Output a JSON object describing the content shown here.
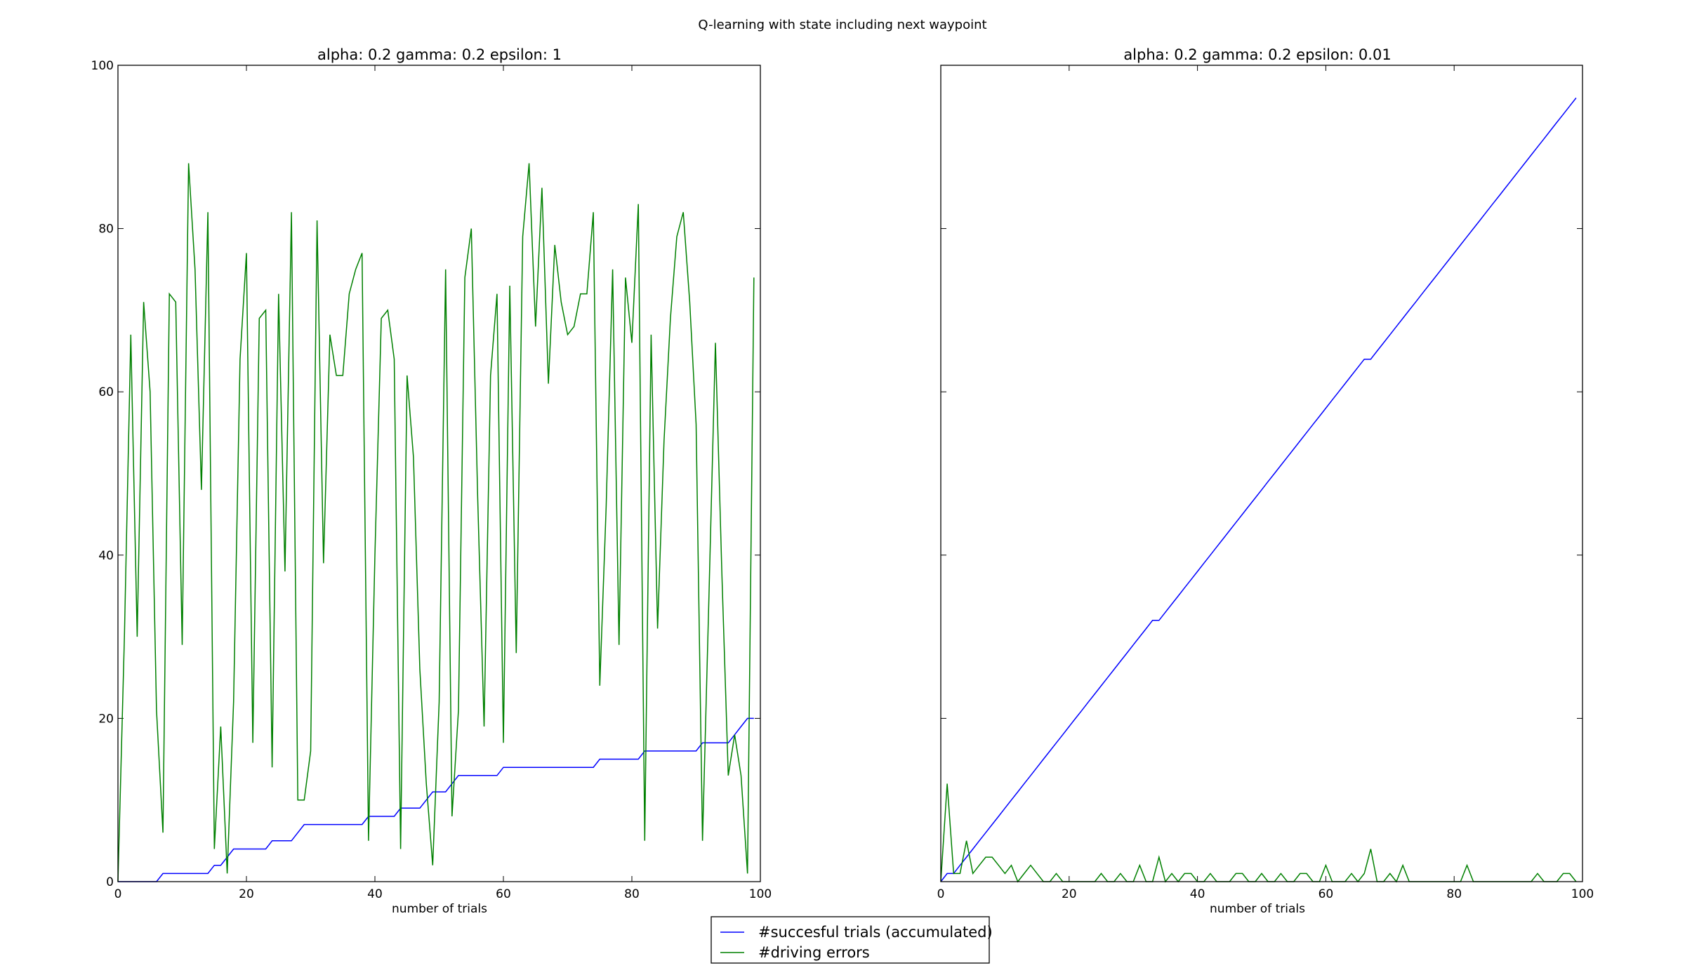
{
  "chart_data": {
    "suptitle": "Q-learning with state including next waypoint",
    "legend": {
      "placement": "bottom-center",
      "entries": [
        {
          "label": "#succesful trials (accumulated)",
          "color": "#0000ff"
        },
        {
          "label": "#driving errors",
          "color": "#008000"
        }
      ]
    },
    "panels": [
      {
        "type": "line",
        "title": "alpha: 0.2 gamma: 0.2 epsilon: 1",
        "xlabel": "number of trials",
        "xlim": [
          0,
          100
        ],
        "ylim": [
          0,
          100
        ],
        "xticks": [
          "0",
          "20",
          "40",
          "60",
          "80",
          "100"
        ],
        "yticks": [
          "0",
          "20",
          "40",
          "60",
          "80",
          "100"
        ],
        "grid": false,
        "series": [
          {
            "name": "#succesful trials (accumulated)",
            "color": "#0000ff",
            "values": [
              0,
              0,
              0,
              0,
              0,
              0,
              0,
              1,
              1,
              1,
              1,
              1,
              1,
              1,
              1,
              2,
              2,
              3,
              4,
              4,
              4,
              4,
              4,
              4,
              5,
              5,
              5,
              5,
              6,
              7,
              7,
              7,
              7,
              7,
              7,
              7,
              7,
              7,
              7,
              8,
              8,
              8,
              8,
              8,
              9,
              9,
              9,
              9,
              10,
              11,
              11,
              11,
              12,
              13,
              13,
              13,
              13,
              13,
              13,
              13,
              14,
              14,
              14,
              14,
              14,
              14,
              14,
              14,
              14,
              14,
              14,
              14,
              14,
              14,
              14,
              15,
              15,
              15,
              15,
              15,
              15,
              15,
              16,
              16,
              16,
              16,
              16,
              16,
              16,
              16,
              16,
              17,
              17,
              17,
              17,
              17,
              18,
              19,
              20,
              20
            ]
          },
          {
            "name": "#driving errors",
            "color": "#008000",
            "values": [
              0,
              30,
              67,
              30,
              71,
              60,
              21,
              6,
              72,
              71,
              29,
              88,
              75,
              48,
              82,
              4,
              19,
              1,
              22,
              64,
              77,
              17,
              69,
              70,
              14,
              72,
              38,
              82,
              10,
              10,
              16,
              81,
              39,
              67,
              62,
              62,
              72,
              75,
              77,
              5,
              40,
              69,
              70,
              64,
              4,
              62,
              52,
              26,
              12,
              2,
              22,
              75,
              8,
              21,
              74,
              80,
              47,
              19,
              62,
              72,
              17,
              73,
              28,
              79,
              88,
              68,
              85,
              61,
              78,
              71,
              67,
              68,
              72,
              72,
              82,
              24,
              46,
              75,
              29,
              74,
              66,
              83,
              5,
              67,
              31,
              54,
              69,
              79,
              82,
              71,
              56,
              5,
              35,
              66,
              38,
              13,
              18,
              13,
              1,
              74
            ]
          }
        ]
      },
      {
        "type": "line",
        "title": "alpha: 0.2 gamma: 0.2 epsilon: 0.01",
        "xlabel": "number of trials",
        "xlim": [
          0,
          100
        ],
        "ylim": [
          0,
          100
        ],
        "xticks": [
          "0",
          "20",
          "40",
          "60",
          "80",
          "100"
        ],
        "yticks": [],
        "grid": false,
        "series": [
          {
            "name": "#succesful trials (accumulated)",
            "color": "#0000ff",
            "values": [
              0,
              1,
              1,
              2,
              3,
              4,
              5,
              6,
              7,
              8,
              9,
              10,
              11,
              12,
              13,
              14,
              15,
              16,
              17,
              18,
              19,
              20,
              21,
              22,
              23,
              24,
              25,
              26,
              27,
              28,
              29,
              30,
              31,
              32,
              32,
              33,
              34,
              35,
              36,
              37,
              38,
              39,
              40,
              41,
              42,
              43,
              44,
              45,
              46,
              47,
              48,
              49,
              50,
              51,
              52,
              53,
              54,
              55,
              56,
              57,
              58,
              59,
              60,
              61,
              62,
              63,
              64,
              64,
              65,
              66,
              67,
              68,
              69,
              70,
              71,
              72,
              73,
              74,
              75,
              76,
              77,
              78,
              79,
              80,
              81,
              82,
              83,
              84,
              85,
              86,
              87,
              88,
              89,
              90,
              91,
              92,
              93,
              94,
              95,
              96
            ]
          },
          {
            "name": "#driving errors",
            "color": "#008000",
            "values": [
              0,
              12,
              1,
              1,
              5,
              1,
              2,
              3,
              3,
              2,
              1,
              2,
              0,
              1,
              2,
              1,
              0,
              0,
              1,
              0,
              0,
              0,
              0,
              0,
              0,
              1,
              0,
              0,
              1,
              0,
              0,
              2,
              0,
              0,
              3,
              0,
              1,
              0,
              1,
              1,
              0,
              0,
              1,
              0,
              0,
              0,
              1,
              1,
              0,
              0,
              1,
              0,
              0,
              1,
              0,
              0,
              1,
              1,
              0,
              0,
              2,
              0,
              0,
              0,
              1,
              0,
              1,
              4,
              0,
              0,
              1,
              0,
              2,
              0,
              0,
              0,
              0,
              0,
              0,
              0,
              0,
              0,
              2,
              0,
              0,
              0,
              0,
              0,
              0,
              0,
              0,
              0,
              0,
              1,
              0,
              0,
              0,
              1,
              1,
              0
            ]
          }
        ]
      }
    ]
  }
}
